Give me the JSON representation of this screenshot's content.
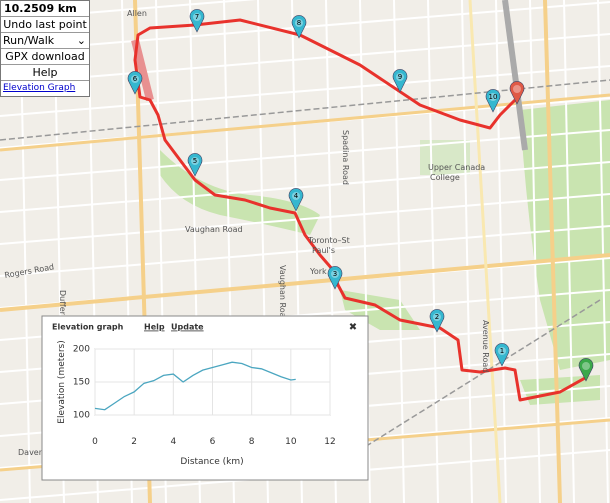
{
  "panel": {
    "distance": "10.2509 km",
    "undo": "Undo last point",
    "mode": "Run/Walk",
    "gpx": "GPX download",
    "help": "Help",
    "elevation_link": "Elevation Graph"
  },
  "map_labels": [
    "Allen",
    "Spadina Road",
    "Upper Canada",
    "College",
    "Toronto–St",
    "Paul's",
    "York",
    "Vaughan Road",
    "Vaughan Road",
    "Rogers Road",
    "Dufferin St",
    "Avenue Road",
    "Daven"
  ],
  "markers": [
    "1",
    "2",
    "3",
    "4",
    "5",
    "6",
    "7",
    "8",
    "9",
    "10"
  ],
  "elevation_graph": {
    "title": "Elevation graph",
    "links": [
      "Help",
      "Update"
    ],
    "close": "✖",
    "type": "line",
    "x_label": "Distance (km)",
    "y_label": "Elevation (meters)",
    "xlim": [
      0,
      12
    ],
    "ylim": [
      100,
      200
    ],
    "xticks": [
      0,
      2,
      4,
      6,
      8,
      10,
      12
    ],
    "yticks": [
      100,
      150,
      200
    ],
    "x": [
      0,
      0.5,
      1,
      1.5,
      2,
      2.5,
      3,
      3.5,
      4,
      4.5,
      5,
      5.5,
      6,
      6.5,
      7,
      7.5,
      8,
      8.5,
      9,
      9.5,
      10,
      10.25
    ],
    "values": [
      110,
      108,
      118,
      128,
      135,
      148,
      152,
      160,
      162,
      150,
      160,
      168,
      172,
      176,
      180,
      178,
      172,
      170,
      164,
      158,
      153,
      154
    ],
    "color": "#4ba6c0"
  }
}
